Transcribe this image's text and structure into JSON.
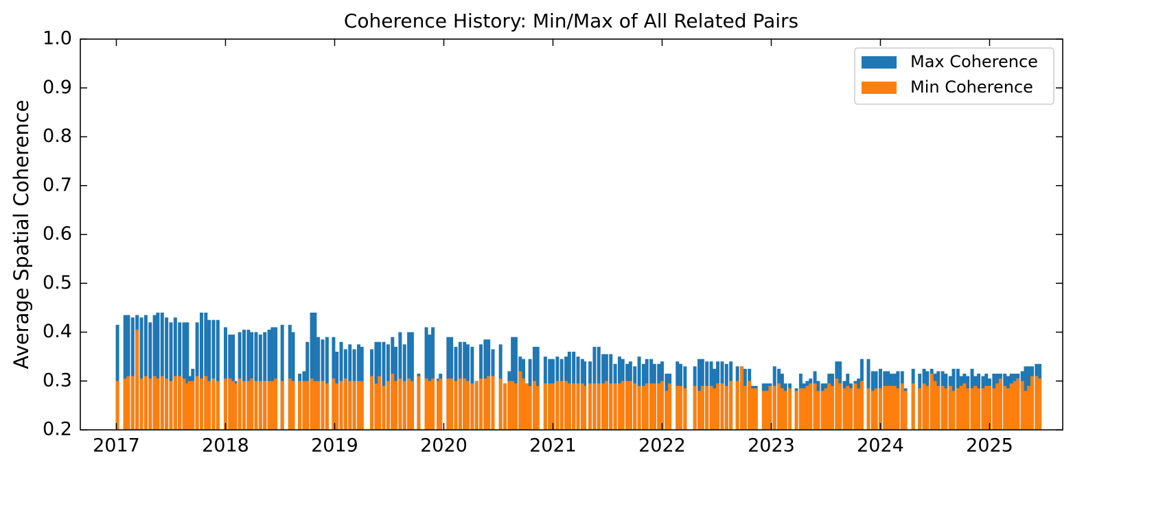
{
  "chart_data": {
    "type": "bar",
    "title": "Coherence History: Min/Max of All Related Pairs",
    "y_label": "Average Spatial Coherence",
    "legend": "upper right",
    "xlim": [
      2016.67,
      2025.67
    ],
    "xticks": [
      2017,
      2018,
      2019,
      2020,
      2021,
      2022,
      2023,
      2024,
      2025
    ],
    "ylim": [
      0.2,
      1.0
    ],
    "yticks": [
      0.2,
      0.3,
      0.4,
      0.5,
      0.6,
      0.7,
      0.8,
      0.9,
      {
        "value": 1.0,
        "label": "1.0"
      }
    ],
    "x": [
      2017.01,
      2017.08,
      2017.11,
      2017.15,
      2017.19,
      2017.23,
      2017.27,
      2017.31,
      2017.35,
      2017.38,
      2017.42,
      2017.46,
      2017.5,
      2017.54,
      2017.58,
      2017.62,
      2017.65,
      2017.67,
      2017.7,
      2017.74,
      2017.78,
      2017.82,
      2017.85,
      2017.89,
      2017.93,
      2018.0,
      2018.04,
      2018.07,
      2018.09,
      2018.13,
      2018.17,
      2018.21,
      2018.24,
      2018.28,
      2018.32,
      2018.36,
      2018.4,
      2018.43,
      2018.46,
      2018.52,
      2018.59,
      2018.62,
      2018.68,
      2018.72,
      2018.75,
      2018.79,
      2018.82,
      2018.85,
      2018.89,
      2018.93,
      2018.99,
      2019.02,
      2019.06,
      2019.1,
      2019.14,
      2019.18,
      2019.22,
      2019.25,
      2019.34,
      2019.38,
      2019.41,
      2019.45,
      2019.49,
      2019.53,
      2019.56,
      2019.6,
      2019.64,
      2019.68,
      2019.71,
      2019.77,
      2019.84,
      2019.87,
      2019.9,
      2019.95,
      2019.97,
      2020.04,
      2020.07,
      2020.11,
      2020.15,
      2020.19,
      2020.22,
      2020.26,
      2020.3,
      2020.34,
      2020.38,
      2020.41,
      2020.45,
      2020.52,
      2020.56,
      2020.6,
      2020.63,
      2020.66,
      2020.7,
      2020.73,
      2020.76,
      2020.79,
      2020.83,
      2020.86,
      2020.93,
      2020.97,
      2021.0,
      2021.04,
      2021.08,
      2021.12,
      2021.15,
      2021.19,
      2021.23,
      2021.27,
      2021.29,
      2021.34,
      2021.38,
      2021.42,
      2021.46,
      2021.49,
      2021.53,
      2021.57,
      2021.61,
      2021.64,
      2021.68,
      2021.71,
      2021.75,
      2021.79,
      2021.83,
      2021.86,
      2021.9,
      2021.93,
      2021.97,
      2022.0,
      2022.04,
      2022.07,
      2022.14,
      2022.17,
      2022.21,
      2022.3,
      2022.34,
      2022.37,
      2022.41,
      2022.45,
      2022.48,
      2022.51,
      2022.55,
      2022.59,
      2022.63,
      2022.69,
      2022.73,
      2022.76,
      2022.8,
      2022.83,
      2022.86,
      2022.93,
      2022.96,
      2022.99,
      2023.03,
      2023.07,
      2023.1,
      2023.13,
      2023.17,
      2023.23,
      2023.27,
      2023.3,
      2023.33,
      2023.36,
      2023.4,
      2023.43,
      2023.47,
      2023.5,
      2023.53,
      2023.56,
      2023.6,
      2023.63,
      2023.67,
      2023.7,
      2023.73,
      2023.77,
      2023.8,
      2023.83,
      2023.89,
      2023.93,
      2023.96,
      2024.0,
      2024.04,
      2024.07,
      2024.1,
      2024.13,
      2024.16,
      2024.2,
      2024.23,
      2024.3,
      2024.36,
      2024.4,
      2024.43,
      2024.47,
      2024.5,
      2024.53,
      2024.57,
      2024.6,
      2024.64,
      2024.67,
      2024.71,
      2024.74,
      2024.77,
      2024.8,
      2024.84,
      2024.87,
      2024.9,
      2024.94,
      2024.97,
      2025.0,
      2025.04,
      2025.07,
      2025.1,
      2025.14,
      2025.17,
      2025.2,
      2025.23,
      2025.26,
      2025.3,
      2025.33,
      2025.36,
      2025.39,
      2025.43,
      2025.46
    ],
    "series": [
      {
        "name": "Max Coherence",
        "color": "#1f77b4",
        "values": [
          0.415,
          0.435,
          0.435,
          0.43,
          0.435,
          0.43,
          0.435,
          0.42,
          0.435,
          0.44,
          0.44,
          0.43,
          0.42,
          0.43,
          0.42,
          0.42,
          0.42,
          0.31,
          0.325,
          0.42,
          0.44,
          0.44,
          0.425,
          0.425,
          0.425,
          0.41,
          0.395,
          0.395,
          0.3,
          0.4,
          0.405,
          0.405,
          0.4,
          0.4,
          0.395,
          0.4,
          0.405,
          0.41,
          0.41,
          0.415,
          0.415,
          0.4,
          0.315,
          0.32,
          0.38,
          0.44,
          0.44,
          0.39,
          0.385,
          0.39,
          0.39,
          0.36,
          0.38,
          0.365,
          0.375,
          0.365,
          0.375,
          0.37,
          0.365,
          0.38,
          0.38,
          0.38,
          0.375,
          0.39,
          0.37,
          0.4,
          0.375,
          0.4,
          0.4,
          0.315,
          0.41,
          0.395,
          0.41,
          0.305,
          0.315,
          0.39,
          0.39,
          0.37,
          0.38,
          0.38,
          0.375,
          0.37,
          0.3,
          0.375,
          0.385,
          0.385,
          0.365,
          0.375,
          0.295,
          0.32,
          0.39,
          0.39,
          0.35,
          0.345,
          0.295,
          0.345,
          0.37,
          0.37,
          0.35,
          0.345,
          0.345,
          0.35,
          0.345,
          0.35,
          0.36,
          0.36,
          0.35,
          0.345,
          0.34,
          0.34,
          0.37,
          0.37,
          0.355,
          0.355,
          0.355,
          0.335,
          0.35,
          0.345,
          0.335,
          0.34,
          0.33,
          0.35,
          0.335,
          0.345,
          0.345,
          0.335,
          0.335,
          0.34,
          0.315,
          0.315,
          0.34,
          0.335,
          0.33,
          0.33,
          0.345,
          0.345,
          0.34,
          0.34,
          0.325,
          0.34,
          0.34,
          0.335,
          0.34,
          0.33,
          0.33,
          0.325,
          0.325,
          0.29,
          0.29,
          0.295,
          0.295,
          0.295,
          0.33,
          0.325,
          0.315,
          0.295,
          0.295,
          0.285,
          0.315,
          0.295,
          0.3,
          0.305,
          0.32,
          0.3,
          0.295,
          0.295,
          0.315,
          0.315,
          0.34,
          0.34,
          0.3,
          0.315,
          0.295,
          0.3,
          0.305,
          0.345,
          0.345,
          0.32,
          0.32,
          0.325,
          0.32,
          0.32,
          0.315,
          0.315,
          0.32,
          0.32,
          0.285,
          0.325,
          0.315,
          0.325,
          0.32,
          0.325,
          0.315,
          0.32,
          0.32,
          0.315,
          0.31,
          0.325,
          0.325,
          0.31,
          0.315,
          0.31,
          0.325,
          0.31,
          0.315,
          0.31,
          0.315,
          0.305,
          0.315,
          0.315,
          0.315,
          0.315,
          0.31,
          0.315,
          0.315,
          0.315,
          0.32,
          0.33,
          0.33,
          0.33,
          0.335,
          0.335
        ]
      },
      {
        "name": "Min Coherence",
        "color": "#ff7f0e",
        "values": [
          0.3,
          0.305,
          0.31,
          0.31,
          0.405,
          0.305,
          0.31,
          0.305,
          0.31,
          0.305,
          0.31,
          0.305,
          0.3,
          0.31,
          0.31,
          0.305,
          0.295,
          0.3,
          0.3,
          0.31,
          0.305,
          0.31,
          0.3,
          0.305,
          0.3,
          0.305,
          0.305,
          0.3,
          0.295,
          0.305,
          0.3,
          0.3,
          0.305,
          0.3,
          0.3,
          0.3,
          0.3,
          0.3,
          0.305,
          0.3,
          0.305,
          0.3,
          0.3,
          0.3,
          0.3,
          0.305,
          0.3,
          0.3,
          0.3,
          0.295,
          0.305,
          0.295,
          0.3,
          0.305,
          0.3,
          0.3,
          0.3,
          0.3,
          0.31,
          0.295,
          0.31,
          0.29,
          0.3,
          0.315,
          0.3,
          0.305,
          0.3,
          0.305,
          0.3,
          0.31,
          0.305,
          0.3,
          0.305,
          0.3,
          0.305,
          0.305,
          0.305,
          0.3,
          0.305,
          0.305,
          0.3,
          0.295,
          0.3,
          0.305,
          0.305,
          0.31,
          0.31,
          0.305,
          0.295,
          0.3,
          0.3,
          0.295,
          0.32,
          0.305,
          0.295,
          0.29,
          0.3,
          0.29,
          0.295,
          0.295,
          0.295,
          0.3,
          0.3,
          0.3,
          0.295,
          0.295,
          0.295,
          0.295,
          0.29,
          0.295,
          0.295,
          0.295,
          0.295,
          0.3,
          0.295,
          0.295,
          0.295,
          0.3,
          0.3,
          0.3,
          0.295,
          0.29,
          0.29,
          0.295,
          0.295,
          0.295,
          0.295,
          0.3,
          0.28,
          0.295,
          0.29,
          0.29,
          0.285,
          0.29,
          0.28,
          0.29,
          0.29,
          0.29,
          0.285,
          0.295,
          0.295,
          0.29,
          0.3,
          0.3,
          0.33,
          0.29,
          0.3,
          0.285,
          0.285,
          0.28,
          0.28,
          0.29,
          0.29,
          0.295,
          0.285,
          0.28,
          0.285,
          0.28,
          0.285,
          0.285,
          0.29,
          0.295,
          0.295,
          0.28,
          0.28,
          0.285,
          0.295,
          0.29,
          0.305,
          0.295,
          0.285,
          0.29,
          0.285,
          0.295,
          0.285,
          0.3,
          0.285,
          0.28,
          0.285,
          0.285,
          0.29,
          0.29,
          0.29,
          0.29,
          0.285,
          0.295,
          0.28,
          0.295,
          0.285,
          0.295,
          0.29,
          0.315,
          0.3,
          0.29,
          0.29,
          0.285,
          0.29,
          0.28,
          0.285,
          0.29,
          0.295,
          0.285,
          0.285,
          0.29,
          0.285,
          0.285,
          0.29,
          0.29,
          0.285,
          0.295,
          0.305,
          0.29,
          0.285,
          0.295,
          0.3,
          0.305,
          0.3,
          0.28,
          0.29,
          0.31,
          0.31,
          0.305
        ]
      }
    ]
  }
}
